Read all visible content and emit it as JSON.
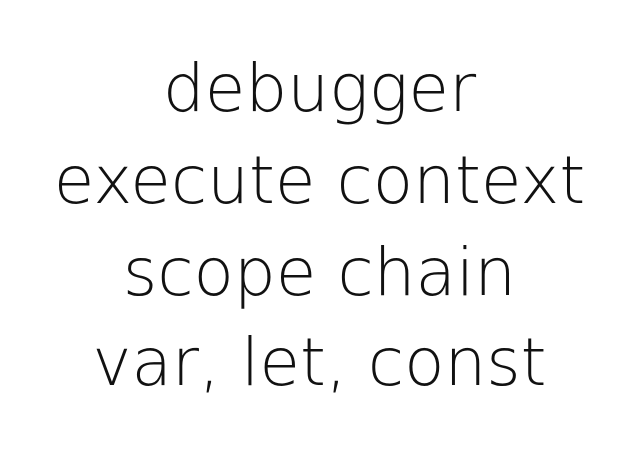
{
  "lines": [
    "debugger",
    "execute context",
    "scope chain",
    "var, let, const"
  ],
  "colors": {
    "background": "#ffffff",
    "text": "#111111"
  }
}
